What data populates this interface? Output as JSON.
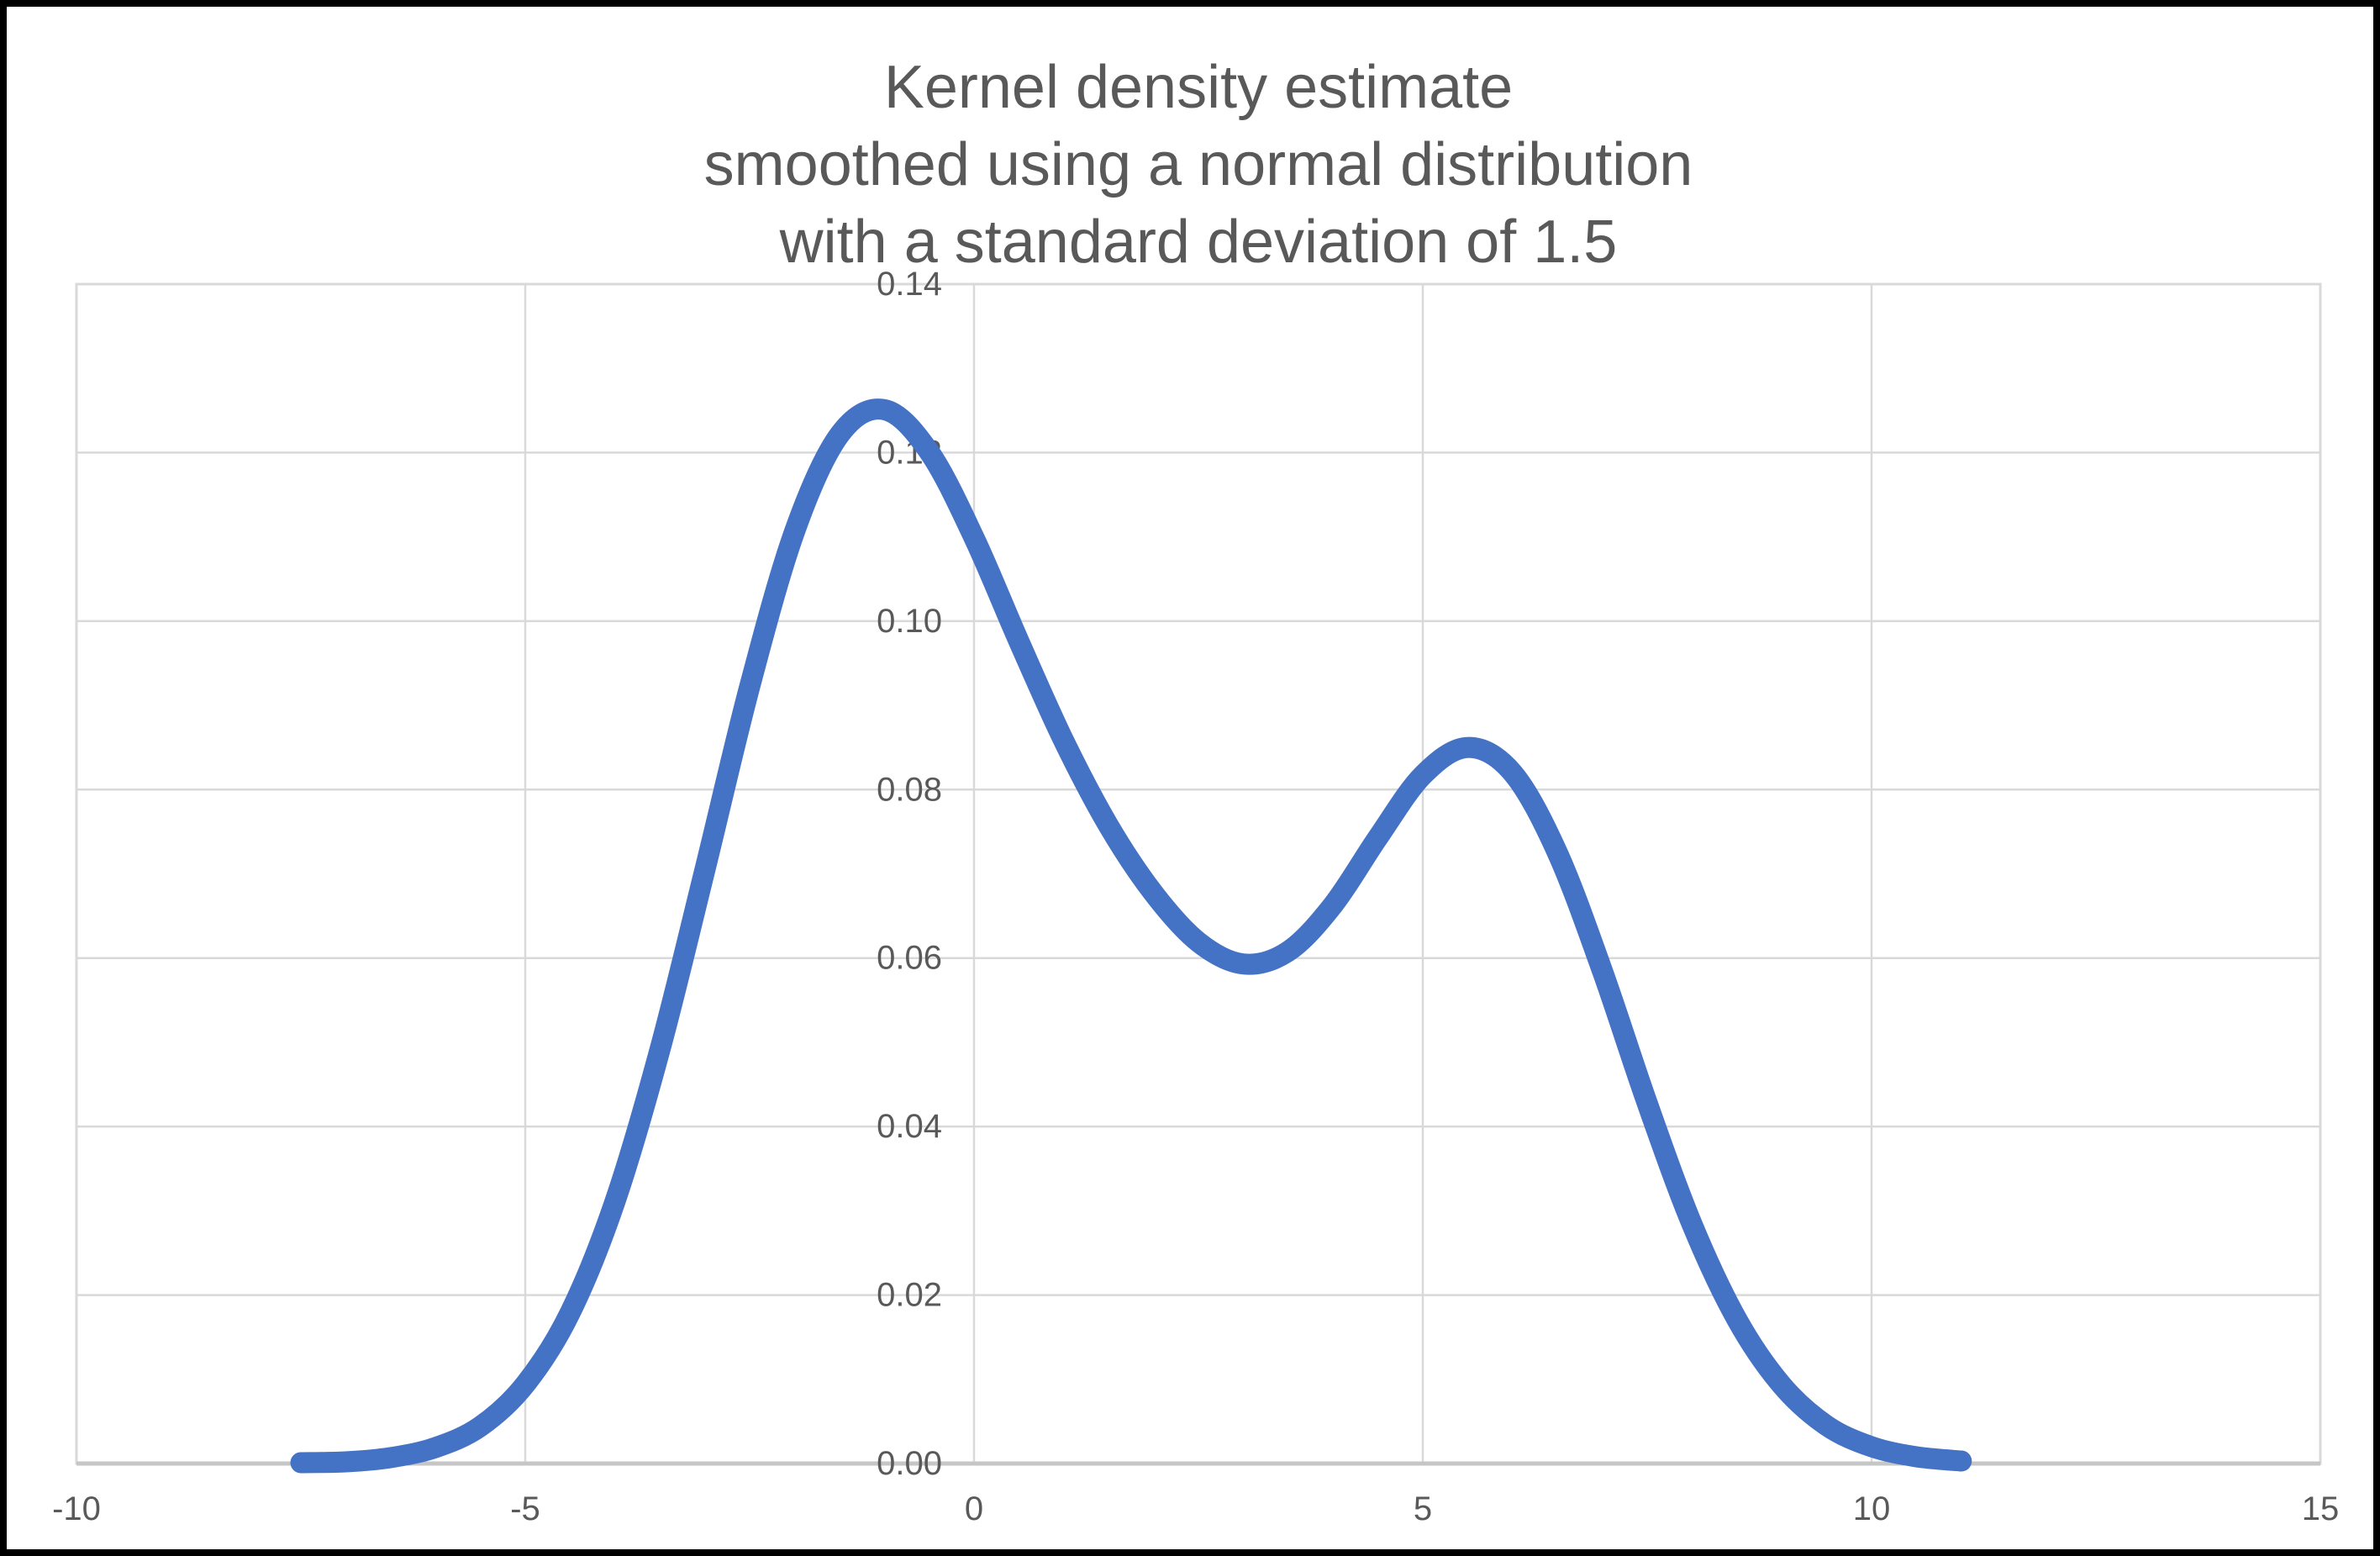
{
  "page": {
    "background": "#ffffff",
    "border_color": "#000000"
  },
  "chart_data": {
    "type": "line",
    "title": "Kernel density estimate smoothed using a normal distribution with a standard deviation of 1.5",
    "title_lines": [
      "Kernel density estimate",
      "smoothed using a normal distribution",
      "with a standard deviation of 1.5"
    ],
    "xlabel": "",
    "ylabel": "",
    "xlim": [
      -10,
      15
    ],
    "ylim": [
      0,
      0.14
    ],
    "x_ticks": [
      -10,
      -5,
      0,
      5,
      10,
      15
    ],
    "x_tick_labels": [
      "-10",
      "-5",
      "0",
      "5",
      "10",
      "15"
    ],
    "y_ticks": [
      0,
      0.02,
      0.04,
      0.06,
      0.08,
      0.1,
      0.12,
      0.14
    ],
    "y_tick_labels": [
      "0.00",
      "0.02",
      "0.04",
      "0.06",
      "0.08",
      "0.10",
      "0.12",
      "0.14"
    ],
    "grid": true,
    "legend_position": "none",
    "series": [
      {
        "name": "Kernel density estimate",
        "color": "#4472C4",
        "x": [
          -7.5,
          -7,
          -6.5,
          -6,
          -5.5,
          -5,
          -4.5,
          -4,
          -3.5,
          -3,
          -2.5,
          -2,
          -1.5,
          -1,
          -0.5,
          0,
          0.5,
          1,
          1.5,
          2,
          2.5,
          3,
          3.5,
          4,
          4.5,
          5,
          5.5,
          6,
          6.5,
          7,
          7.5,
          8,
          8.5,
          9,
          9.5,
          10,
          10.5,
          11
        ],
        "y": [
          0.0001,
          0.0002,
          0.0007,
          0.0019,
          0.0044,
          0.0094,
          0.0179,
          0.0311,
          0.0491,
          0.0704,
          0.0922,
          0.1106,
          0.1221,
          0.1251,
          0.1201,
          0.1099,
          0.0976,
          0.0858,
          0.0757,
          0.0677,
          0.0619,
          0.0593,
          0.0608,
          0.0663,
          0.0743,
          0.0817,
          0.085,
          0.082,
          0.0725,
          0.0585,
          0.0428,
          0.0284,
          0.0171,
          0.0093,
          0.0045,
          0.002,
          0.0008,
          0.0003
        ]
      }
    ],
    "colors": {
      "curve": "#4472C4",
      "title_text": "#595959",
      "tick_text": "#595959",
      "gridline": "#D9D9D9",
      "plot_border": "#D9D9D9",
      "axis_line": "#C6C6C6"
    }
  }
}
